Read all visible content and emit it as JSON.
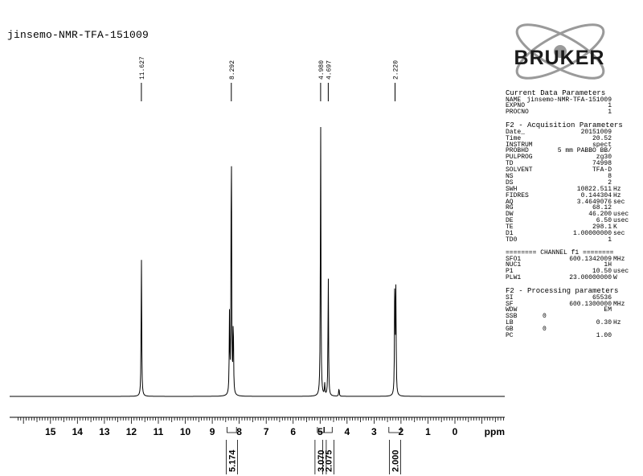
{
  "title": "jinsemo-NMR-TFA-151009",
  "logo": {
    "text": "BRUKER"
  },
  "chart_data": {
    "type": "line",
    "xlabel": "ppm",
    "xlim": [
      16,
      -2
    ],
    "ticks": [
      "15",
      "14",
      "13",
      "12",
      "11",
      "10",
      "9",
      "8",
      "7",
      "6",
      "5",
      "4",
      "3",
      "2",
      "1",
      "0"
    ],
    "peak_labels": [
      "11.627",
      "8.292",
      "4.980",
      "4.697",
      "2.220"
    ],
    "peaks": [
      {
        "ppm": 11.627,
        "height": 0.49
      },
      {
        "ppm": 8.36,
        "height": 0.27
      },
      {
        "ppm": 8.292,
        "height": 0.96
      },
      {
        "ppm": 8.22,
        "height": 0.27
      },
      {
        "ppm": 4.98,
        "height": 0.96
      },
      {
        "ppm": 4.697,
        "height": 0.42
      },
      {
        "ppm": 4.83,
        "height": 0.04
      },
      {
        "ppm": 4.3,
        "height": 0.03
      },
      {
        "ppm": 2.23,
        "height": 0.42
      },
      {
        "ppm": 2.19,
        "height": 0.35
      }
    ],
    "integrals": [
      {
        "from": 8.45,
        "to": 8.1,
        "value": "5.174"
      },
      {
        "from": 5.1,
        "to": 4.86,
        "value": "3.070"
      },
      {
        "from": 4.84,
        "to": 4.55,
        "value": "2.075"
      },
      {
        "from": 2.45,
        "to": 2.0,
        "value": "2.000"
      }
    ]
  },
  "parameters": {
    "current": {
      "header": "Current Data Parameters",
      "rows": [
        {
          "k": "NAME",
          "v": "jinsemo-NMR-TFA-151009",
          "u": ""
        },
        {
          "k": "EXPNO",
          "v": "1",
          "u": ""
        },
        {
          "k": "PROCNO",
          "v": "1",
          "u": ""
        }
      ]
    },
    "acquisition": {
      "header": "F2 - Acquisition Parameters",
      "rows": [
        {
          "k": "Date_",
          "v": "20151009",
          "u": ""
        },
        {
          "k": "Time",
          "v": "20.52",
          "u": ""
        },
        {
          "k": "INSTRUM",
          "v": "spect",
          "u": ""
        },
        {
          "k": "PROBHD",
          "v": "5 mm PABBO BB/",
          "u": ""
        },
        {
          "k": "PULPROG",
          "v": "zg30",
          "u": ""
        },
        {
          "k": "TD",
          "v": "74998",
          "u": ""
        },
        {
          "k": "SOLVENT",
          "v": "TFA-D",
          "u": ""
        },
        {
          "k": "NS",
          "v": "8",
          "u": ""
        },
        {
          "k": "DS",
          "v": "2",
          "u": ""
        },
        {
          "k": "SWH",
          "v": "10822.511",
          "u": "Hz"
        },
        {
          "k": "FIDRES",
          "v": "0.144304",
          "u": "Hz"
        },
        {
          "k": "AQ",
          "v": "3.4649076",
          "u": "sec"
        },
        {
          "k": "RG",
          "v": "68.12",
          "u": ""
        },
        {
          "k": "DW",
          "v": "46.200",
          "u": "usec"
        },
        {
          "k": "DE",
          "v": "6.50",
          "u": "usec"
        },
        {
          "k": "TE",
          "v": "298.1",
          "u": "K"
        },
        {
          "k": "D1",
          "v": "1.00000000",
          "u": "sec"
        },
        {
          "k": "TD0",
          "v": "1",
          "u": ""
        }
      ]
    },
    "channel": {
      "header": "======== CHANNEL f1 ========",
      "rows": [
        {
          "k": "SFO1",
          "v": "600.1342009",
          "u": "MHz"
        },
        {
          "k": "NUC1",
          "v": "1H",
          "u": ""
        },
        {
          "k": "P1",
          "v": "10.50",
          "u": "usec"
        },
        {
          "k": "PLW1",
          "v": "23.00000000",
          "u": "W"
        }
      ]
    },
    "processing": {
      "header": "F2 - Processing parameters",
      "rows": [
        {
          "k": "SI",
          "v": "65536",
          "u": ""
        },
        {
          "k": "SF",
          "v": "600.1300000",
          "u": "MHz"
        },
        {
          "k": "WDW",
          "v": "EM",
          "u": ""
        },
        {
          "k": "SSB",
          "v": "0",
          "u": "",
          "left": true
        },
        {
          "k": "LB",
          "v": "0.30",
          "u": "Hz"
        },
        {
          "k": "GB",
          "v": "0",
          "u": "",
          "left": true
        },
        {
          "k": "PC",
          "v": "1.00",
          "u": ""
        }
      ]
    }
  }
}
